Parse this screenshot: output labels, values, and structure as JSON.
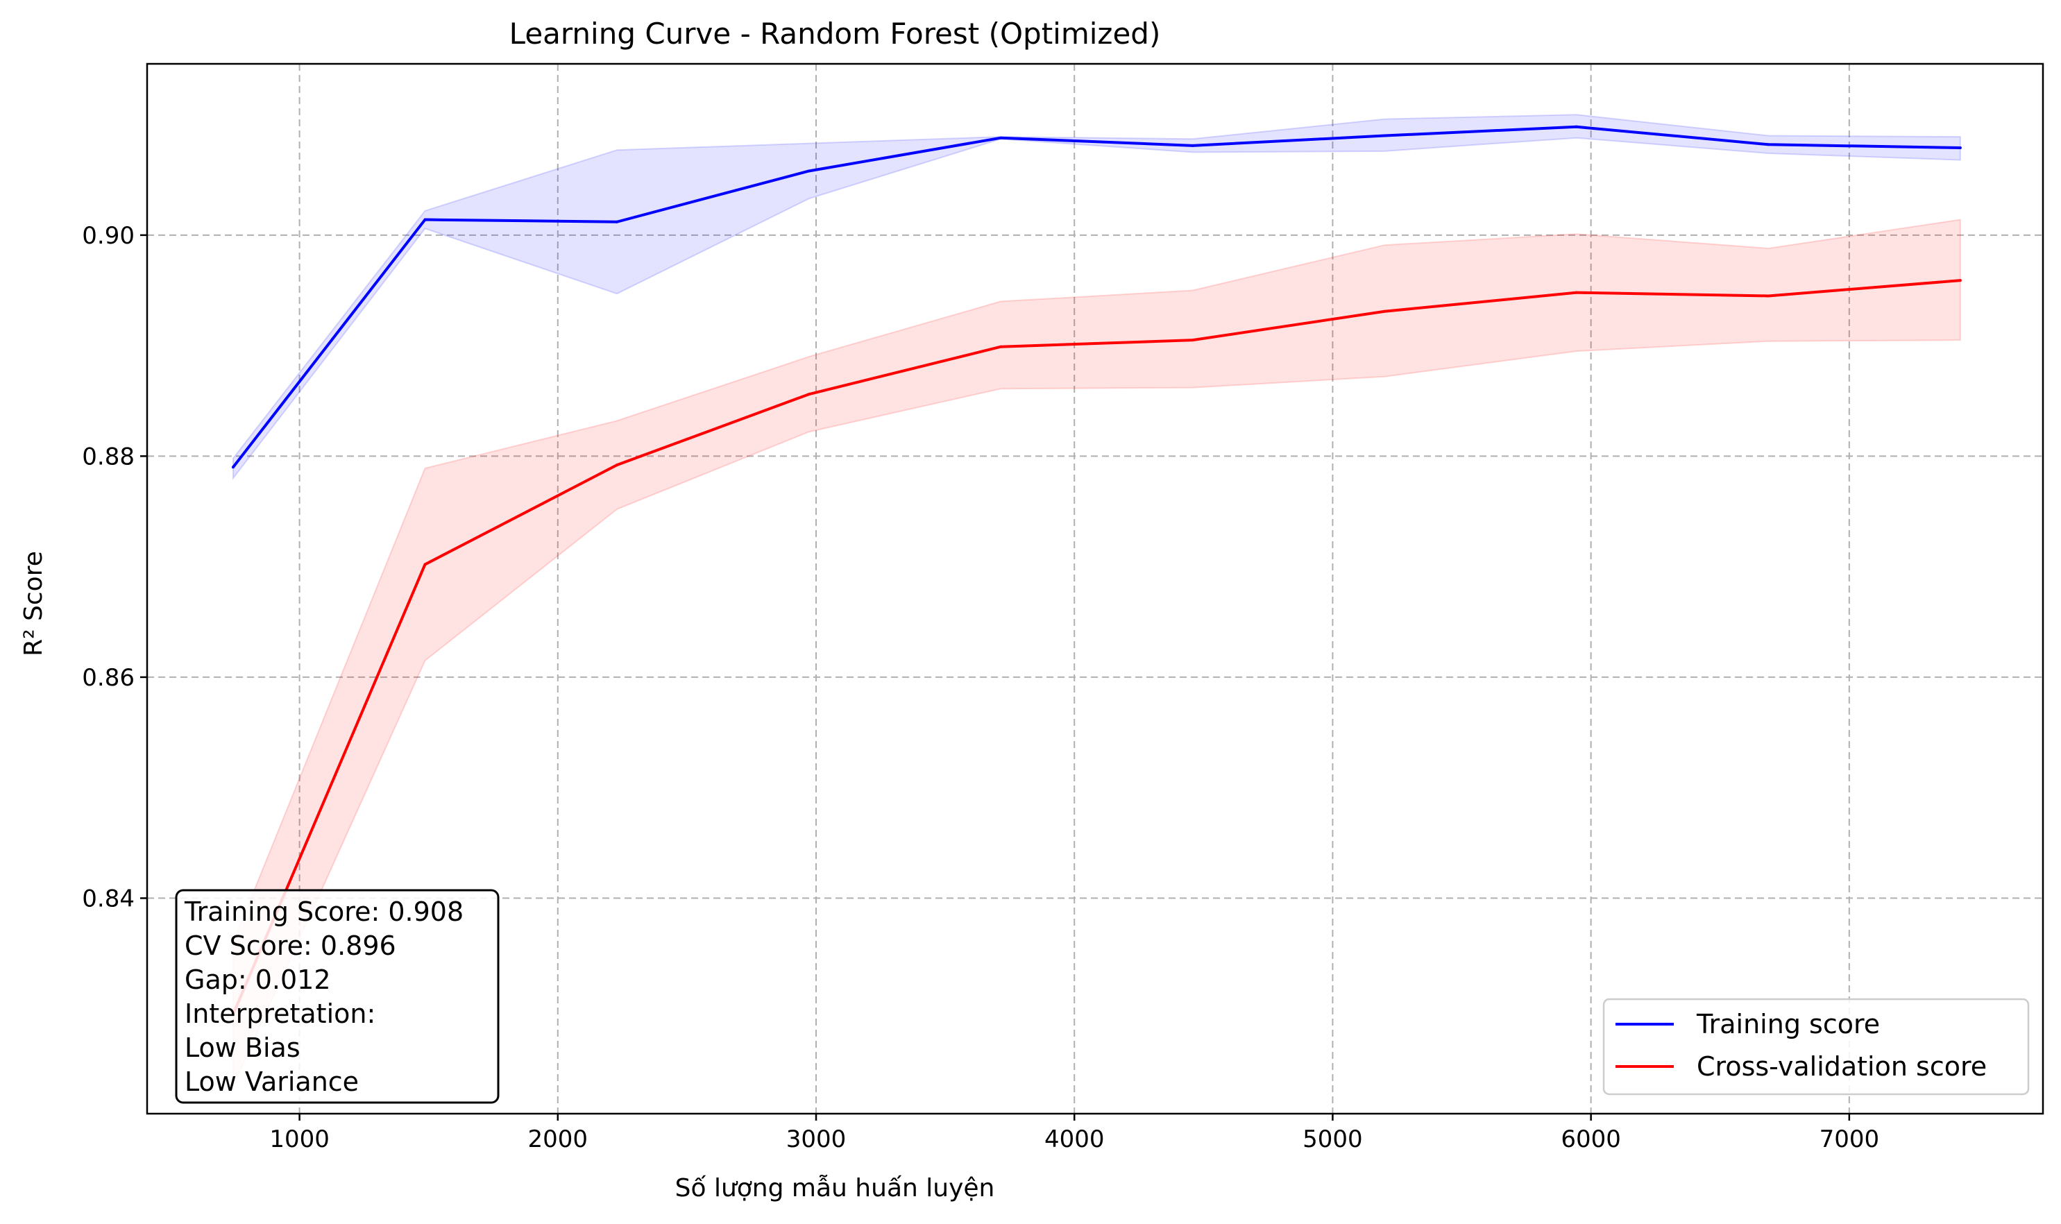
{
  "chart_data": {
    "type": "line",
    "title": "Learning Curve - Random Forest (Optimized)",
    "xlabel": "Số lượng mẫu huấn luyện",
    "ylabel": "R² Score",
    "xlim": [
      410,
      7750
    ],
    "ylim": [
      0.8205,
      0.9155
    ],
    "xticks": [
      1000,
      2000,
      3000,
      4000,
      5000,
      6000,
      7000
    ],
    "xtick_labels": [
      "1000",
      "2000",
      "3000",
      "4000",
      "5000",
      "6000",
      "7000"
    ],
    "yticks": [
      0.84,
      0.86,
      0.88,
      0.9
    ],
    "ytick_labels": [
      "0.84",
      "0.86",
      "0.88",
      "0.90"
    ],
    "grid": true,
    "legend_position": "lower-right",
    "x": [
      743,
      1486,
      2229,
      2972,
      3715,
      4458,
      5201,
      5944,
      6687,
      7430
    ],
    "series": [
      {
        "name": "Training score",
        "color": "#0000ff",
        "band_color": "#0000ff",
        "values": [
          0.879,
          0.9014,
          0.9012,
          0.9058,
          0.9088,
          0.9081,
          0.909,
          0.9098,
          0.9082,
          0.9079
        ],
        "upper": [
          0.8798,
          0.9022,
          0.9077,
          0.9083,
          0.9089,
          0.9087,
          0.9105,
          0.9109,
          0.909,
          0.9089
        ],
        "lower": [
          0.878,
          0.9006,
          0.8947,
          0.9033,
          0.9087,
          0.9075,
          0.9076,
          0.9088,
          0.9074,
          0.9068
        ]
      },
      {
        "name": "Cross-validation score",
        "color": "#ff0000",
        "band_color": "#ff0000",
        "values": [
          0.8295,
          0.8702,
          0.8792,
          0.8856,
          0.8899,
          0.8905,
          0.8931,
          0.8948,
          0.8945,
          0.8959
        ],
        "upper": [
          0.836,
          0.8789,
          0.8832,
          0.889,
          0.894,
          0.895,
          0.8991,
          0.9001,
          0.8988,
          0.9014
        ],
        "lower": [
          0.823,
          0.8615,
          0.8752,
          0.8822,
          0.8861,
          0.8862,
          0.8872,
          0.8895,
          0.8904,
          0.8905
        ]
      }
    ],
    "annotation_lines": [
      "Training Score: 0.908",
      "CV Score: 0.896",
      "Gap: 0.012",
      "Interpretation:",
      "Low Bias",
      "Low Variance"
    ]
  }
}
